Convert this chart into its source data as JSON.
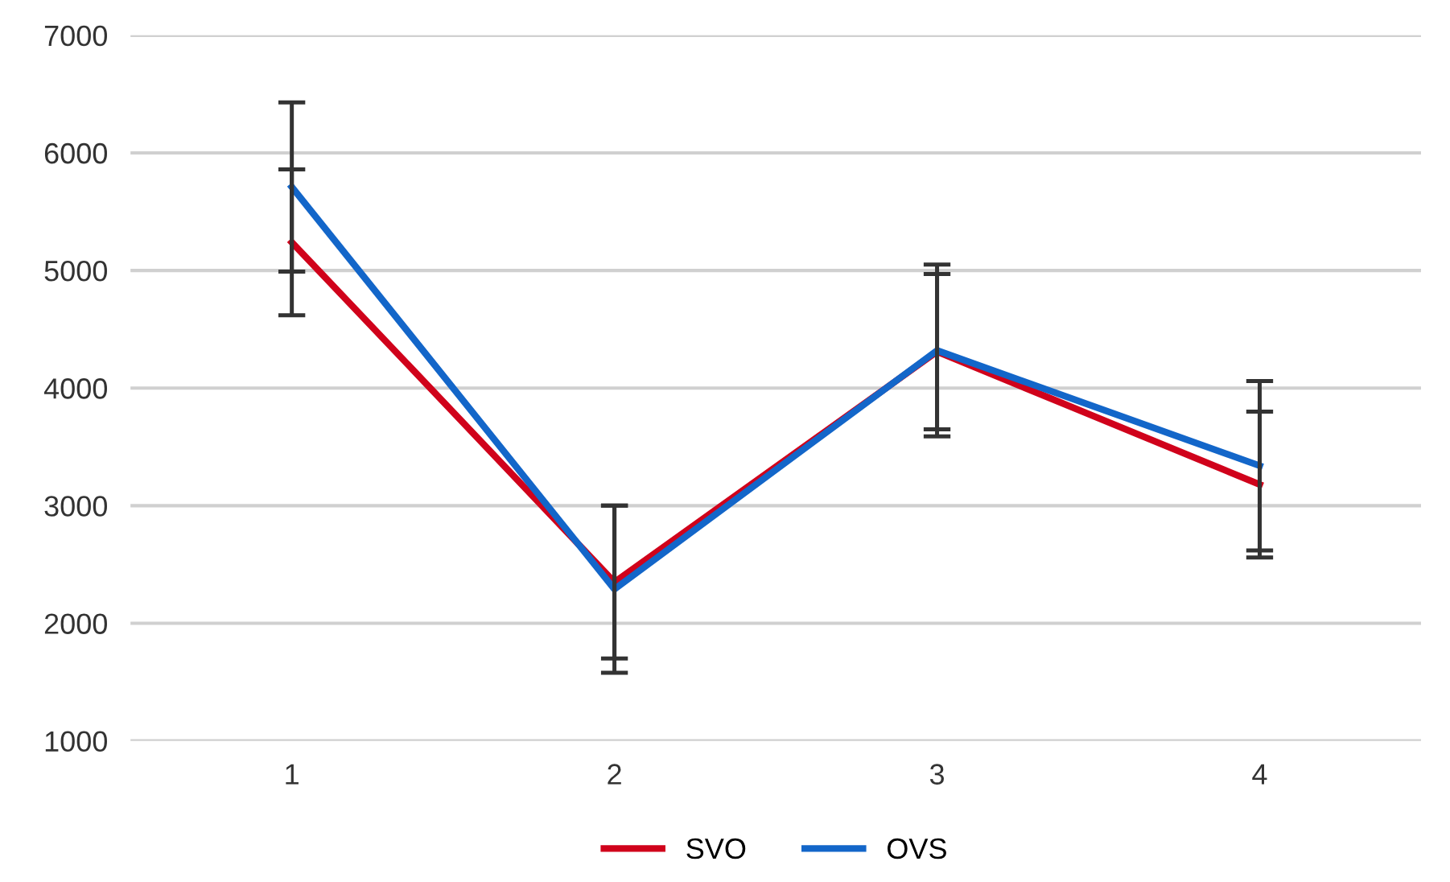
{
  "chart_data": {
    "type": "line",
    "categories": [
      "1",
      "2",
      "3",
      "4"
    ],
    "series": [
      {
        "name": "SVO",
        "color": "#d0021b",
        "values": [
          5240,
          2350,
          4310,
          3180
        ],
        "errors": [
          620,
          650,
          660,
          620
        ]
      },
      {
        "name": "OVS",
        "color": "#1366c9",
        "values": [
          5710,
          2290,
          4320,
          3340
        ],
        "errors": [
          720,
          710,
          730,
          720
        ]
      }
    ],
    "ylim": [
      1000,
      7000
    ],
    "yticks": [
      1000,
      2000,
      3000,
      4000,
      5000,
      6000,
      7000
    ],
    "grid": "y",
    "legend": "bottom",
    "marker": "none",
    "line_style": "solid"
  }
}
